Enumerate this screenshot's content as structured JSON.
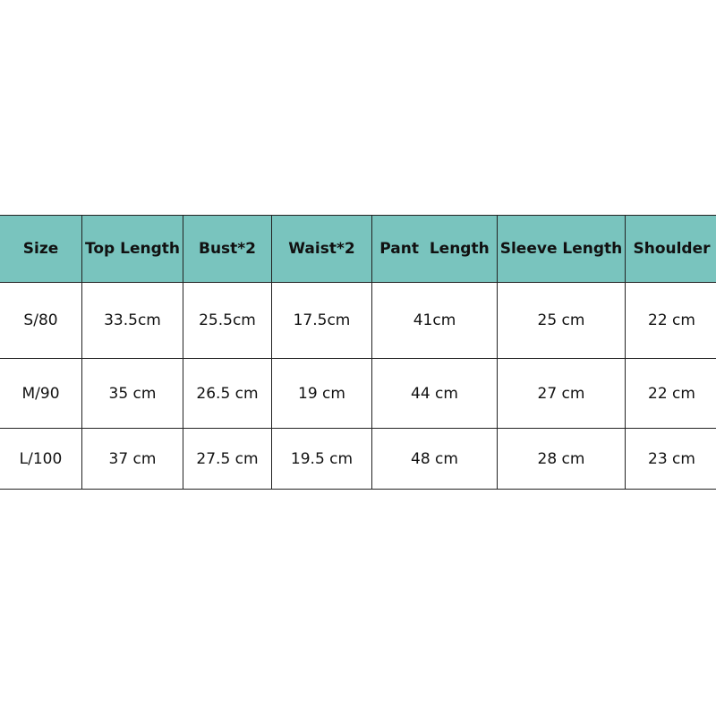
{
  "colors": {
    "header_bg": "#79c4be"
  },
  "table": {
    "headers": [
      "Size",
      "Top Length",
      "Bust*2",
      "Waist*2",
      "Pant  Length",
      "Sleeve Length",
      "Shoulder"
    ],
    "rows": [
      [
        "S/80",
        "33.5cm",
        "25.5cm",
        "17.5cm",
        "41cm",
        "25 cm",
        "22 cm"
      ],
      [
        "M/90",
        "35 cm",
        "26.5 cm",
        "19 cm",
        "44 cm",
        "27 cm",
        "22 cm"
      ],
      [
        "L/100",
        "37 cm",
        "27.5 cm",
        "19.5 cm",
        "48 cm",
        "28 cm",
        "23 cm"
      ]
    ]
  }
}
